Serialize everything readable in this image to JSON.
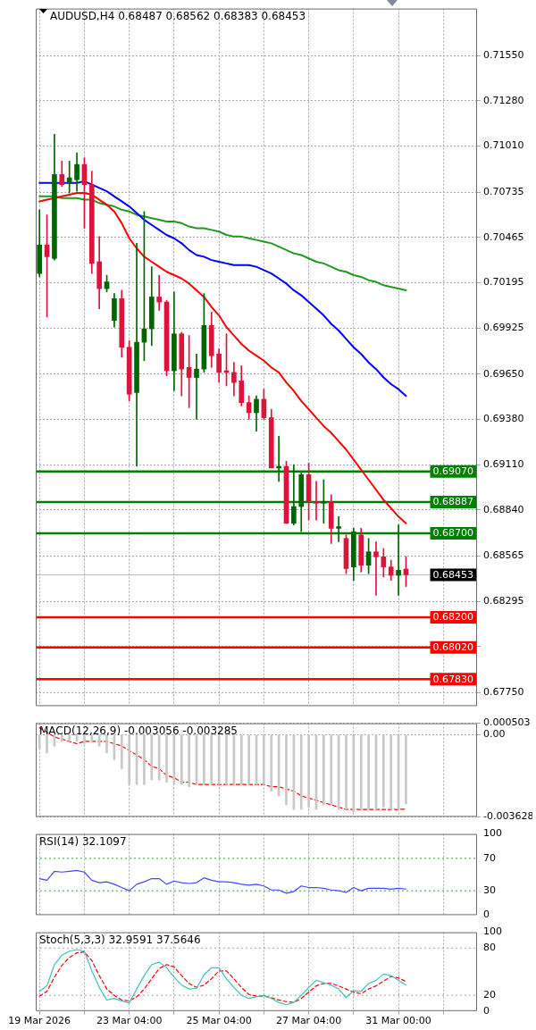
{
  "chart_data": [
    {
      "type": "candlestick",
      "title": "AUDUSD,H4 0.68487 0.68562 0.68383 0.68453",
      "categories": [
        null,
        null,
        null,
        null,
        null,
        null,
        null,
        null,
        null,
        null,
        null,
        null,
        null,
        null,
        null,
        null,
        null,
        null,
        null,
        null,
        null,
        null,
        null,
        null,
        null,
        null,
        null,
        null,
        null,
        null,
        null,
        null,
        null,
        null,
        null,
        null,
        null,
        null,
        null,
        null,
        null,
        null,
        null,
        null,
        null,
        null,
        null,
        null,
        null,
        null,
        null,
        null,
        null,
        null,
        null,
        null,
        null,
        null,
        null
      ],
      "ohlc": [
        [
          0.7025,
          0.7063,
          0.7023,
          0.7042
        ],
        [
          0.7042,
          0.706,
          0.6999,
          0.7035
        ],
        [
          0.7034,
          0.7108,
          0.7033,
          0.7084
        ],
        [
          0.7084,
          0.7092,
          0.7077,
          0.7078
        ],
        [
          0.7079,
          0.7092,
          0.7073,
          0.7082
        ],
        [
          0.7081,
          0.7097,
          0.7074,
          0.709
        ],
        [
          0.709,
          0.7094,
          0.7052,
          0.7078
        ],
        [
          0.7078,
          0.7086,
          0.7025,
          0.7031
        ],
        [
          0.7032,
          0.7047,
          0.7004,
          0.7016
        ],
        [
          0.7016,
          0.7024,
          0.7014,
          0.702
        ],
        [
          0.6997,
          0.7013,
          0.6993,
          0.701
        ],
        [
          0.701,
          0.7015,
          0.6975,
          0.6981
        ],
        [
          0.6981,
          0.6985,
          0.6949,
          0.6953
        ],
        [
          0.6954,
          0.7043,
          0.691,
          0.6984
        ],
        [
          0.6984,
          0.7062,
          0.6973,
          0.6992
        ],
        [
          0.6992,
          0.7029,
          0.6982,
          0.7011
        ],
        [
          0.7011,
          0.7024,
          0.7003,
          0.7008
        ],
        [
          0.7008,
          0.7009,
          0.6964,
          0.6967
        ],
        [
          0.6967,
          0.7014,
          0.6955,
          0.6989
        ],
        [
          0.6989,
          0.699,
          0.6952,
          0.6968
        ],
        [
          0.6969,
          0.6988,
          0.6945,
          0.6963
        ],
        [
          0.6963,
          0.6977,
          0.6938,
          0.6968
        ],
        [
          0.6968,
          0.7013,
          0.6966,
          0.6994
        ],
        [
          0.6994,
          0.7002,
          0.6969,
          0.6976
        ],
        [
          0.6977,
          0.698,
          0.696,
          0.6966
        ],
        [
          0.6967,
          0.6989,
          0.6958,
          0.6966
        ],
        [
          0.6966,
          0.6972,
          0.6952,
          0.696
        ],
        [
          0.6961,
          0.697,
          0.6946,
          0.6948
        ],
        [
          0.6948,
          0.6952,
          0.6938,
          0.6942
        ],
        [
          0.6942,
          0.6952,
          0.6931,
          0.695
        ],
        [
          0.695,
          0.6956,
          0.6938,
          0.6939
        ],
        [
          0.6939,
          0.6944,
          0.6909,
          0.6909
        ],
        [
          0.6909,
          0.6928,
          0.6901,
          0.691
        ],
        [
          0.691,
          0.6913,
          0.6876,
          0.6876
        ],
        [
          0.6876,
          0.6911,
          0.6875,
          0.6886
        ],
        [
          0.6886,
          0.6906,
          0.6871,
          0.6905
        ],
        [
          0.6905,
          0.6912,
          0.6878,
          0.6889
        ],
        [
          0.6889,
          0.6901,
          0.6878,
          0.6888
        ],
        [
          0.6888,
          0.6902,
          0.6876,
          0.6889
        ],
        [
          0.6889,
          0.6893,
          0.6864,
          0.6873
        ],
        [
          0.6873,
          0.688,
          0.6865,
          0.6874
        ],
        [
          0.6867,
          0.6869,
          0.6846,
          0.6849
        ],
        [
          0.685,
          0.6873,
          0.6842,
          0.6871
        ],
        [
          0.6869,
          0.6873,
          0.6847,
          0.6851
        ],
        [
          0.6851,
          0.6867,
          0.6846,
          0.6859
        ],
        [
          0.6859,
          0.6865,
          0.6833,
          0.6856
        ],
        [
          0.6856,
          0.6861,
          0.6844,
          0.685
        ],
        [
          0.685,
          0.6854,
          0.6842,
          0.6845
        ],
        [
          0.6845,
          0.6875,
          0.6833,
          0.6848
        ],
        [
          0.68487,
          0.68562,
          0.68383,
          0.68453
        ],
        null,
        null,
        null,
        null,
        null,
        null,
        null,
        null,
        null
      ],
      "colors": [
        "#006400",
        "#dc143c",
        "#006400",
        "#dc143c",
        "#006400",
        "#006400",
        "#dc143c",
        "#dc143c",
        "#dc143c",
        "#006400",
        "#006400",
        "#dc143c",
        "#dc143c",
        "#006400",
        "#006400",
        "#006400",
        "#dc143c",
        "#dc143c",
        "#006400",
        "#dc143c",
        "#dc143c",
        "#006400",
        "#006400",
        "#dc143c",
        "#dc143c",
        "#dc143c",
        "#dc143c",
        "#dc143c",
        "#dc143c",
        "#006400",
        "#dc143c",
        "#dc143c",
        "#006400",
        "#dc143c",
        "#006400",
        "#006400",
        "#dc143c",
        "#dc143c",
        "#006400",
        "#dc143c",
        "#006400",
        "#dc143c",
        "#006400",
        "#dc143c",
        "#006400",
        "#dc143c",
        "#dc143c",
        "#dc143c",
        "#006400",
        "#dc143c",
        null,
        null,
        null,
        null,
        null,
        null,
        null,
        null,
        null
      ],
      "series": [
        {
          "type": "line",
          "color": "#ff0000",
          "values": [
            0.7068,
            0.7069,
            0.707,
            0.7071,
            0.7072,
            0.7073,
            0.7073,
            0.7072,
            0.7069,
            0.7066,
            0.7062,
            0.7055,
            0.7046,
            0.704,
            0.7035,
            0.7032,
            0.7029,
            0.7026,
            0.7024,
            0.7022,
            0.7019,
            0.7015,
            0.7011,
            0.7005,
            0.7,
            0.6993,
            0.6988,
            0.6983,
            0.6979,
            0.6976,
            0.6973,
            0.6969,
            0.6966,
            0.696,
            0.6955,
            0.6949,
            0.6944,
            0.6939,
            0.6934,
            0.693,
            0.6925,
            0.692,
            0.6914,
            0.6908,
            0.6902,
            0.6896,
            0.689,
            0.6885,
            0.688,
            0.6876,
            null,
            null,
            null,
            null,
            null,
            null,
            null,
            null,
            null
          ]
        },
        {
          "type": "line",
          "color": "#0000ff",
          "values": [
            0.7079,
            0.7079,
            0.7079,
            0.7079,
            0.7079,
            0.7079,
            0.708,
            0.7078,
            0.7076,
            0.7074,
            0.7071,
            0.7068,
            0.7065,
            0.7061,
            0.7057,
            0.7054,
            0.7051,
            0.7048,
            0.7046,
            0.7043,
            0.7039,
            0.7036,
            0.7035,
            0.7033,
            0.7032,
            0.7031,
            0.703,
            0.703,
            0.703,
            0.7029,
            0.7027,
            0.7025,
            0.7022,
            0.7019,
            0.7015,
            0.7012,
            0.7008,
            0.7004,
            0.7,
            0.6995,
            0.6991,
            0.6986,
            0.6981,
            0.6977,
            0.6972,
            0.6968,
            0.6963,
            0.6959,
            0.6956,
            0.6952,
            null,
            null,
            null,
            null,
            null,
            null,
            null,
            null,
            null
          ]
        },
        {
          "type": "line",
          "color": "#1f9a1f",
          "values": [
            0.7071,
            0.7071,
            0.7071,
            0.707,
            0.707,
            0.707,
            0.7069,
            0.7069,
            0.7067,
            0.7066,
            0.7065,
            0.7063,
            0.7062,
            0.706,
            0.7059,
            0.7058,
            0.7057,
            0.7056,
            0.7056,
            0.7055,
            0.7053,
            0.7052,
            0.7052,
            0.7051,
            0.705,
            0.7048,
            0.7047,
            0.7047,
            0.7046,
            0.7045,
            0.7044,
            0.7043,
            0.7041,
            0.7039,
            0.7037,
            0.7036,
            0.7034,
            0.7032,
            0.7031,
            0.7029,
            0.7027,
            0.7026,
            0.7024,
            0.7023,
            0.7021,
            0.702,
            0.7018,
            0.7017,
            0.7016,
            0.7015,
            null,
            null,
            null,
            null,
            null,
            null,
            null,
            null,
            null
          ]
        }
      ],
      "ylim": [
        0.6767,
        0.7183
      ],
      "yticks": [
        {
          "value": 0.7155,
          "label": "0.71550"
        },
        {
          "value": 0.7128,
          "label": "0.71280"
        },
        {
          "value": 0.7101,
          "label": "0.71010"
        },
        0.70735,
        0.70465,
        0.70195,
        0.69925,
        {
          "value": 0.6965,
          "label": "0.69650"
        },
        {
          "value": 0.6938,
          "label": "0.69380"
        },
        {
          "value": 0.6911,
          "label": "0.69110"
        },
        {
          "value": 0.6884,
          "label": "0.68840"
        },
        0.68565,
        0.68295,
        {
          "value": 0.68025,
          "label": null
        },
        {
          "value": 0.6775,
          "label": "0.67750"
        }
      ],
      "ref_lines": [
        {
          "axis": "y",
          "value": 0.6907,
          "label": "0.69070",
          "color": "#008000"
        },
        {
          "axis": "y",
          "value": 0.68887,
          "label": "0.68887",
          "color": "#008000"
        },
        {
          "axis": "y",
          "value": 0.687,
          "label": "0.68700",
          "color": "#008000"
        },
        {
          "axis": "y",
          "value": 0.68453,
          "label": "0.68453",
          "color": "#b4bac6"
        },
        {
          "axis": "y",
          "value": 0.682,
          "label": "0.68200",
          "color": "#ff0000"
        },
        {
          "axis": "y",
          "value": 0.6802,
          "label": "0.68020",
          "color": "#ff0000"
        },
        {
          "axis": "y",
          "value": 0.6783,
          "label": "0.67830",
          "color": "#ff0000"
        }
      ],
      "grid": true,
      "tick_labels": "y"
    },
    {
      "type": "bar",
      "title": "MACD(12,26,9) -0.003056 -0.003285",
      "categories": [
        null,
        null,
        null,
        null,
        null,
        null,
        null,
        null,
        null,
        null,
        null,
        null,
        null,
        null,
        null,
        null,
        null,
        null,
        null,
        null,
        null,
        null,
        null,
        null,
        null,
        null,
        null,
        null,
        null,
        null,
        null,
        null,
        null,
        null,
        null,
        null,
        null,
        null,
        null,
        null,
        null,
        null,
        null,
        null,
        null,
        null,
        null,
        null,
        null,
        null,
        null,
        null,
        null,
        null,
        null,
        null,
        null,
        null,
        null
      ],
      "series": [
        {
          "color": "#c8c8c8",
          "values": [
            -0.0006,
            -0.0008,
            -0.0005,
            -0.0003,
            -0.0003,
            -0.0003,
            -0.0004,
            -0.0003,
            -0.0005,
            -0.0008,
            -0.0011,
            -0.0015,
            -0.0022,
            -0.0022,
            -0.0022,
            -0.002,
            -0.002,
            -0.0021,
            -0.0022,
            -0.0022,
            -0.0023,
            -0.0022,
            -0.0022,
            -0.0022,
            -0.0022,
            -0.0022,
            -0.0022,
            -0.0022,
            -0.0022,
            -0.0022,
            -0.0022,
            -0.0025,
            -0.0027,
            -0.0031,
            -0.0033,
            -0.0033,
            -0.0032,
            -0.0033,
            -0.0031,
            -0.0031,
            -0.0033,
            -0.0033,
            -0.0034,
            -0.0033,
            -0.0033,
            -0.0033,
            -0.0032,
            -0.0033,
            -0.0033,
            -0.003056,
            null,
            null,
            null,
            null,
            null,
            null,
            null,
            null,
            null
          ]
        },
        {
          "type": "line",
          "color": "#ff0000",
          "line_style": "dashed",
          "values": [
            0.0003,
            0.0001,
            -0.0001,
            -0.0002,
            -0.0003,
            -0.0004,
            -0.0003,
            -0.0003,
            -0.0003,
            -0.0003,
            -0.0004,
            -0.0005,
            -0.0007,
            -0.0009,
            -0.0011,
            -0.0014,
            -0.0015,
            -0.0018,
            -0.0019,
            -0.0021,
            -0.0021,
            -0.0022,
            -0.0022,
            -0.0022,
            -0.0022,
            -0.0022,
            -0.0022,
            -0.0022,
            -0.0022,
            -0.0022,
            -0.0022,
            -0.0023,
            -0.0023,
            -0.0024,
            -0.0025,
            -0.0027,
            -0.0028,
            -0.0029,
            -0.003,
            -0.0031,
            -0.0032,
            -0.0033,
            -0.0033,
            -0.0033,
            -0.0033,
            -0.0033,
            -0.0033,
            -0.0033,
            -0.0033,
            -0.003285,
            null,
            null,
            null,
            null,
            null,
            null,
            null,
            null,
            null
          ]
        }
      ],
      "ylim": [
        -0.003628,
        0.000503
      ],
      "yticks": [
        0.000503,
        {
          "value": 0,
          "label": "0.00"
        },
        -0.003628
      ],
      "grid": true,
      "tick_labels": "y"
    },
    {
      "type": "line",
      "title": "RSI(14) 32.1097",
      "categories": [
        null,
        null,
        null,
        null,
        null,
        null,
        null,
        null,
        null,
        null,
        null,
        null,
        null,
        null,
        null,
        null,
        null,
        null,
        null,
        null,
        null,
        null,
        null,
        null,
        null,
        null,
        null,
        null,
        null,
        null,
        null,
        null,
        null,
        null,
        null,
        null,
        null,
        null,
        null,
        null,
        null,
        null,
        null,
        null,
        null,
        null,
        null,
        null,
        null,
        null,
        null,
        null,
        null,
        null,
        null,
        null,
        null,
        null,
        null
      ],
      "series": [
        {
          "color": "#4646ff",
          "values": [
            45,
            43,
            54,
            53,
            54,
            55,
            53,
            43,
            40,
            41,
            38,
            34,
            30,
            38,
            41,
            45,
            45,
            38,
            42,
            40,
            39,
            40,
            46,
            43,
            41,
            41,
            40,
            38,
            37,
            38,
            36,
            31,
            31,
            27,
            29,
            36,
            34,
            34,
            33,
            31,
            30,
            28,
            34,
            30,
            33,
            33,
            33,
            32,
            33,
            32.1097,
            null,
            null,
            null,
            null,
            null,
            null,
            null,
            null,
            null
          ]
        }
      ],
      "ylim": [
        0,
        100
      ],
      "yticks": [
        0,
        30,
        70,
        100
      ],
      "ref_lines": [
        {
          "axis": "y",
          "value": 70,
          "color": "#2ca82c",
          "line_style": "dotted"
        },
        {
          "axis": "y",
          "value": 30,
          "color": "#2ca82c",
          "line_style": "dotted"
        }
      ],
      "grid": "x",
      "tick_labels": "y"
    },
    {
      "type": "line",
      "title": "Stoch(5,3,3) 32.9591 37.5646",
      "categories": [
        "19 Mar 2026",
        null,
        null,
        null,
        null,
        null,
        null,
        null,
        null,
        null,
        null,
        null,
        "23 Mar 04:00",
        null,
        null,
        null,
        null,
        null,
        null,
        null,
        null,
        null,
        null,
        null,
        "25 Mar 04:00",
        null,
        null,
        null,
        null,
        null,
        null,
        null,
        null,
        null,
        null,
        null,
        "27 Mar 04:00",
        null,
        null,
        null,
        null,
        null,
        null,
        null,
        null,
        null,
        null,
        null,
        "31 Mar 00:00",
        null,
        null,
        null,
        null,
        null,
        null,
        null,
        null,
        null,
        null
      ],
      "series": [
        {
          "color": "#40c0b8",
          "values": [
            25,
            32,
            59,
            71,
            76,
            78,
            76,
            51,
            30,
            14,
            16,
            13,
            10,
            28,
            45,
            59,
            62,
            55,
            43,
            33,
            28,
            29,
            46,
            55,
            55,
            41,
            30,
            20,
            16,
            18,
            20,
            16,
            11,
            8,
            11,
            20,
            30,
            39,
            36,
            33,
            28,
            17,
            26,
            25,
            35,
            39,
            47,
            45,
            39,
            32.9591,
            null,
            null,
            null,
            null,
            null,
            null,
            null,
            null,
            null
          ]
        },
        {
          "color": "#ff0000",
          "line_style": "dashed",
          "values": [
            19,
            25,
            43,
            58,
            68,
            74,
            75,
            64,
            45,
            28,
            20,
            14,
            13,
            18,
            28,
            41,
            54,
            59,
            56,
            45,
            35,
            30,
            33,
            41,
            51,
            51,
            41,
            30,
            21,
            19,
            19,
            17,
            14,
            12,
            11,
            16,
            24,
            32,
            35,
            35,
            32,
            28,
            24,
            22,
            28,
            32,
            38,
            44,
            42,
            37.5646,
            null,
            null,
            null,
            null,
            null,
            null,
            null,
            null,
            null
          ]
        }
      ],
      "ylim": [
        0,
        100
      ],
      "yticks": [
        0,
        20,
        80,
        100
      ],
      "ref_lines": [
        {
          "axis": "y",
          "value": 80,
          "color": "#a0a0a0",
          "line_style": "dotted"
        },
        {
          "axis": "y",
          "value": 20,
          "color": "#a0a0a0",
          "line_style": "dotted"
        }
      ],
      "grid": "x"
    }
  ]
}
